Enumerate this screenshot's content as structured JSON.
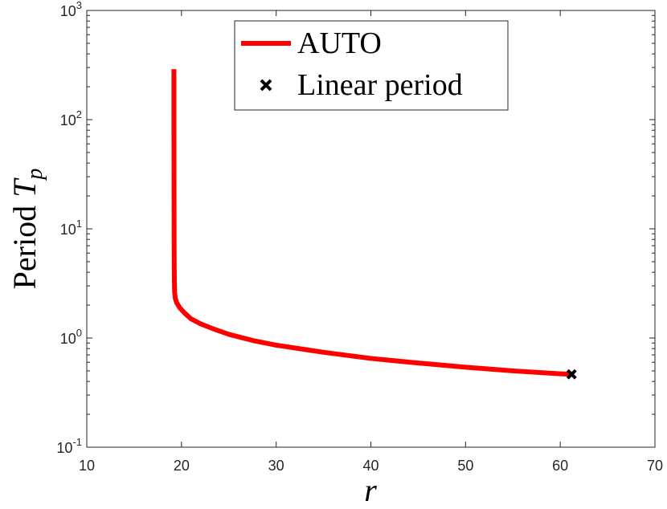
{
  "chart_data": {
    "type": "line",
    "xlim": [
      10,
      70
    ],
    "ylim": [
      0.1,
      1000
    ],
    "yscale": "log",
    "xticks": [
      10,
      20,
      30,
      40,
      50,
      60,
      70
    ],
    "xtick_labels": [
      "10",
      "20",
      "30",
      "40",
      "50",
      "60",
      "70"
    ],
    "yticks": [
      0.1,
      1,
      10,
      100,
      1000
    ],
    "ytick_labels": [
      {
        "base": "10",
        "exp": "-1"
      },
      {
        "base": "10",
        "exp": "0"
      },
      {
        "base": "10",
        "exp": "1"
      },
      {
        "base": "10",
        "exp": "2"
      },
      {
        "base": "10",
        "exp": "3"
      }
    ],
    "xlabel": "r",
    "ylabel": {
      "text": "Period ",
      "math": "T",
      "sub": "p"
    },
    "grid": false,
    "legend_position": "top-center",
    "series": [
      {
        "name": "AUTO",
        "type": "line",
        "color": "#ff0000",
        "x": [
          19.2,
          19.2,
          19.21,
          19.22,
          19.23,
          19.25,
          19.28,
          19.35,
          19.5,
          19.8,
          20.3,
          21.0,
          22.0,
          23.5,
          25.0,
          27.5,
          30.0,
          35.0,
          40.0,
          45.0,
          50.0,
          55.0,
          60.0,
          61.2
        ],
        "y": [
          290,
          100,
          30,
          10,
          5,
          3.2,
          2.6,
          2.3,
          2.1,
          1.9,
          1.7,
          1.5,
          1.35,
          1.2,
          1.08,
          0.95,
          0.86,
          0.74,
          0.65,
          0.59,
          0.54,
          0.5,
          0.47,
          0.465
        ]
      },
      {
        "name": "Linear period",
        "type": "scatter",
        "marker": "x",
        "color": "#000000",
        "x": [
          61.2
        ],
        "y": [
          0.465
        ]
      }
    ]
  }
}
